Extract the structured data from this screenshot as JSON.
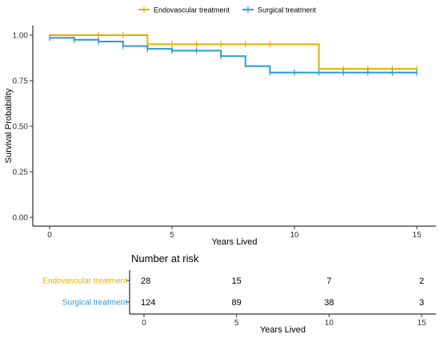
{
  "chart_data": [
    {
      "type": "line",
      "subtype": "kaplan-meier-step",
      "title": "",
      "xlabel": "Years Lived",
      "ylabel": "Survival Probability",
      "xlim": [
        0,
        15
      ],
      "ylim": [
        0,
        1
      ],
      "x_ticks": [
        0,
        5,
        10,
        15
      ],
      "x_tick_labels": [
        "0",
        "5",
        "10",
        "15"
      ],
      "y_ticks": [
        0,
        0.25,
        0.5,
        0.75,
        1
      ],
      "y_tick_labels": [
        "0.00",
        "0.25",
        "0.50",
        "0.75",
        "1.00"
      ],
      "grid": false,
      "legend_position": "top",
      "series": [
        {
          "name": "Endovascular treatment",
          "color": "#E5AE00",
          "steps": [
            [
              0,
              1.0
            ],
            [
              4,
              0.95
            ],
            [
              11,
              0.815
            ],
            [
              15,
              0.815
            ]
          ],
          "censor_times": [
            2,
            3,
            5,
            6,
            7,
            8,
            9,
            12,
            13,
            14,
            15
          ],
          "censor_values": [
            1.0,
            1.0,
            0.95,
            0.95,
            0.95,
            0.95,
            0.95,
            0.815,
            0.815,
            0.815,
            0.815
          ]
        },
        {
          "name": "Surgical treatment",
          "color": "#2B9AD9",
          "steps": [
            [
              0,
              0.985
            ],
            [
              1,
              0.975
            ],
            [
              2,
              0.965
            ],
            [
              3,
              0.94
            ],
            [
              4,
              0.925
            ],
            [
              5,
              0.915
            ],
            [
              7,
              0.885
            ],
            [
              8,
              0.83
            ],
            [
              9,
              0.795
            ],
            [
              15,
              0.795
            ]
          ],
          "censor_times": [
            0,
            1,
            2,
            3,
            4,
            5,
            6,
            7,
            9,
            10,
            11,
            12,
            13,
            14,
            15
          ],
          "censor_values": [
            0.985,
            0.975,
            0.965,
            0.94,
            0.925,
            0.915,
            0.915,
            0.885,
            0.795,
            0.795,
            0.795,
            0.795,
            0.795,
            0.795,
            0.795
          ]
        }
      ]
    },
    {
      "type": "table",
      "title": "Number at risk",
      "xlabel": "Years Lived",
      "xlim": [
        0,
        15
      ],
      "x_ticks": [
        0,
        5,
        10,
        15
      ],
      "x_tick_labels": [
        "0",
        "5",
        "10",
        "15"
      ],
      "rows": [
        {
          "name": "Endovascular treatment",
          "color": "#E5AE00",
          "values": [
            "28",
            "15",
            "7",
            "2"
          ]
        },
        {
          "name": "Surgical treatment",
          "color": "#2B9AD9",
          "values": [
            "124",
            "89",
            "38",
            "3"
          ]
        }
      ]
    }
  ]
}
